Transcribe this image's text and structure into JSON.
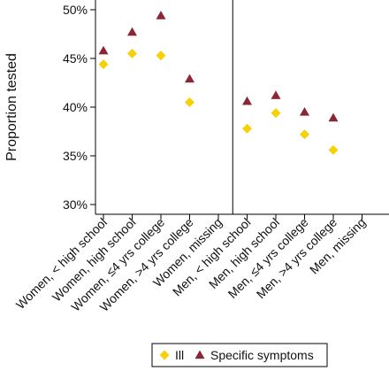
{
  "chart_data": {
    "type": "scatter",
    "title": "",
    "xlabel": "",
    "ylabel": "Proportion tested",
    "ylim": [
      0.29,
      0.51
    ],
    "yticks": [
      0.3,
      0.35,
      0.4,
      0.45,
      0.5
    ],
    "ytick_labels": [
      "30%",
      "35%",
      "40%",
      "45%",
      "50%"
    ],
    "categories": [
      "Women, < high school",
      "Women, high school",
      "Women, ≤4 yrs college",
      "Women, >4 yrs college",
      "Women, missing",
      "Men, < high school",
      "Men, high school",
      "Men, ≤4 yrs college",
      "Men, >4 yrs college",
      "Men, missing"
    ],
    "series": [
      {
        "name": "Ill",
        "marker": "diamond",
        "color": "#F5D10A",
        "values": [
          0.444,
          0.455,
          0.453,
          0.405,
          null,
          0.378,
          0.394,
          0.372,
          0.356,
          null
        ]
      },
      {
        "name": "Specific symptoms",
        "marker": "triangle",
        "color": "#8B2635",
        "values": [
          0.458,
          0.477,
          0.494,
          0.429,
          null,
          0.406,
          0.412,
          0.395,
          0.389,
          null
        ]
      }
    ],
    "legend_position": "bottom",
    "group_divider_after_category": 4,
    "grid": false
  }
}
